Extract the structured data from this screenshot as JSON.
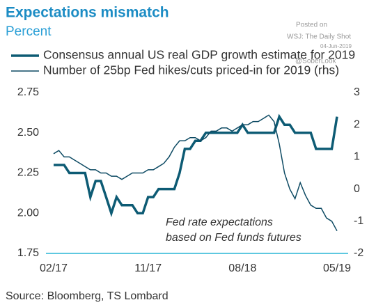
{
  "chart_data": {
    "type": "line",
    "title": "Expectations mismatch",
    "subtitle": "Percent",
    "source": "Source: Bloomberg, TS Lombard",
    "annotations": [
      "Fed rate expectations",
      "based on Fed funds futures"
    ],
    "watermark": [
      "Posted on",
      "WSJ: The Daily Shot",
      "04-Jun-2019",
      "@SoberLook"
    ],
    "categories": [
      "02/17",
      null,
      null,
      null,
      null,
      null,
      null,
      null,
      null,
      null,
      null,
      null,
      null,
      null,
      null,
      null,
      null,
      null,
      "11/17",
      null,
      null,
      null,
      null,
      null,
      null,
      null,
      null,
      null,
      null,
      null,
      null,
      null,
      null,
      null,
      null,
      null,
      "08/18",
      null,
      null,
      null,
      null,
      null,
      null,
      null,
      null,
      null,
      null,
      null,
      null,
      null,
      null,
      null,
      null,
      null,
      "05/19"
    ],
    "series": [
      {
        "name": "Consensus annual US real GDP growth estimate for 2019",
        "color": "#0d5b74",
        "axis": "y",
        "values": [
          2.3,
          2.3,
          2.3,
          2.25,
          2.25,
          2.25,
          2.25,
          2.1,
          2.2,
          2.2,
          2.1,
          2.0,
          2.1,
          2.05,
          2.05,
          2.05,
          2.0,
          2.0,
          2.1,
          2.1,
          2.15,
          2.15,
          2.15,
          2.15,
          2.25,
          2.4,
          2.4,
          2.45,
          2.45,
          2.5,
          2.5,
          2.5,
          2.5,
          2.5,
          2.5,
          2.5,
          2.55,
          2.5,
          2.5,
          2.5,
          2.5,
          2.5,
          2.5,
          2.6,
          2.55,
          2.55,
          2.5,
          2.5,
          2.5,
          2.5,
          2.4,
          2.4,
          2.4,
          2.4,
          2.6
        ]
      },
      {
        "name": "Number of 25bp Fed hikes/cuts priced-in for 2019 (rhs)",
        "color": "#0d4a63",
        "axis": "y2",
        "values": [
          1.1,
          1.2,
          1.0,
          1.0,
          0.9,
          0.8,
          0.7,
          0.6,
          0.6,
          0.5,
          0.5,
          0.4,
          0.4,
          0.3,
          0.4,
          0.5,
          0.5,
          0.5,
          0.6,
          0.6,
          0.7,
          0.8,
          1.0,
          1.3,
          1.5,
          1.5,
          1.6,
          1.6,
          1.5,
          1.6,
          1.8,
          1.8,
          1.9,
          1.9,
          1.8,
          1.9,
          2.0,
          2.0,
          2.1,
          2.1,
          2.2,
          2.3,
          2.1,
          1.4,
          0.5,
          0.0,
          -0.3,
          0.2,
          -0.2,
          -0.5,
          -0.6,
          -0.6,
          -0.9,
          -1.0,
          -1.3
        ]
      }
    ],
    "ylim": [
      1.75,
      2.75
    ],
    "yticks": [
      {
        "value": 2.75,
        "label": "2.75"
      },
      {
        "value": 2.5,
        "label": "2.50"
      },
      {
        "value": 2.25,
        "label": "2.25"
      },
      {
        "value": 2,
        "label": "2.00"
      },
      {
        "value": 1.75,
        "label": "1.75"
      }
    ],
    "y2lim": [
      -2,
      3
    ],
    "y2ticks": [
      3,
      2,
      1,
      0,
      -1,
      -2
    ],
    "grid": false,
    "baseline_color": "#29b6d6"
  }
}
